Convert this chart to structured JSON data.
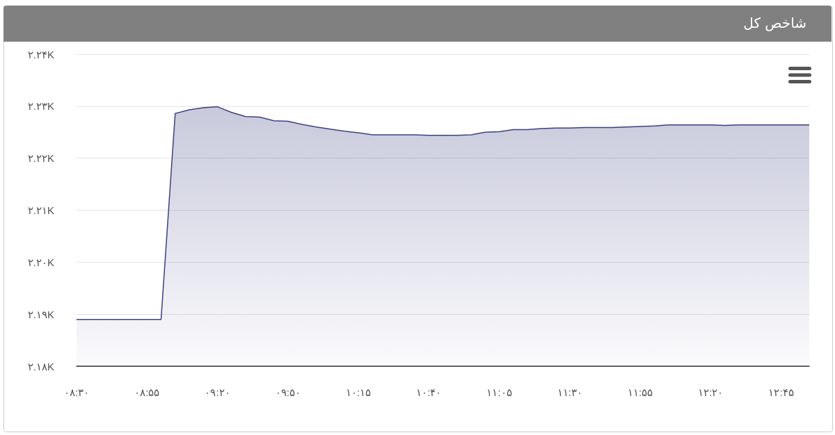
{
  "chart_data": {
    "type": "area",
    "title": "شاخص کل",
    "categories": [
      "۰۸:۳۰",
      null,
      null,
      null,
      null,
      "۰۸:۵۵",
      null,
      null,
      null,
      null,
      "۰۹:۲۰",
      null,
      null,
      null,
      null,
      "۰۹:۵۰",
      null,
      null,
      null,
      null,
      "۱۰:۱۵",
      null,
      null,
      null,
      null,
      "۱۰:۴۰",
      null,
      null,
      null,
      null,
      "۱۱:۰۵",
      null,
      null,
      null,
      null,
      "۱۱:۳۰",
      null,
      null,
      null,
      null,
      "۱۱:۵۵",
      null,
      null,
      null,
      null,
      "۱۲:۲۰",
      null,
      null,
      null,
      null,
      "۱۲:۴۵",
      null,
      null
    ],
    "series": [
      {
        "color": "#3b4080",
        "values": [
          2189,
          2189,
          2189,
          2189,
          2189,
          2189,
          2189,
          2228.6,
          2229.3,
          2229.7,
          2229.9,
          2228.8,
          2228.0,
          2227.9,
          2227.2,
          2227.1,
          2226.5,
          2226.0,
          2225.6,
          2225.2,
          2224.9,
          2224.5,
          2224.5,
          2224.5,
          2224.5,
          2224.4,
          2224.4,
          2224.4,
          2224.5,
          2225.0,
          2225.1,
          2225.5,
          2225.5,
          2225.7,
          2225.8,
          2225.8,
          2225.9,
          2225.9,
          2225.9,
          2226.0,
          2226.1,
          2226.2,
          2226.4,
          2226.4,
          2226.4,
          2226.4,
          2226.3,
          2226.4,
          2226.4,
          2226.4,
          2226.4,
          2226.4,
          2226.4
        ]
      }
    ],
    "ylim": [
      2180,
      2240
    ],
    "yticks": [
      {
        "value": 2180,
        "label": "۲.۱۸K"
      },
      {
        "value": 2190,
        "label": "۲.۱۹K"
      },
      {
        "value": 2200,
        "label": "۲.۲۰K"
      },
      {
        "value": 2210,
        "label": "۲.۲۱K"
      },
      {
        "value": 2220,
        "label": "۲.۲۲K"
      },
      {
        "value": 2230,
        "label": "۲.۲۳K"
      },
      {
        "value": 2240,
        "label": "۲.۲۴K"
      }
    ],
    "grid": "y",
    "marker": "none",
    "line_style": "solid"
  }
}
